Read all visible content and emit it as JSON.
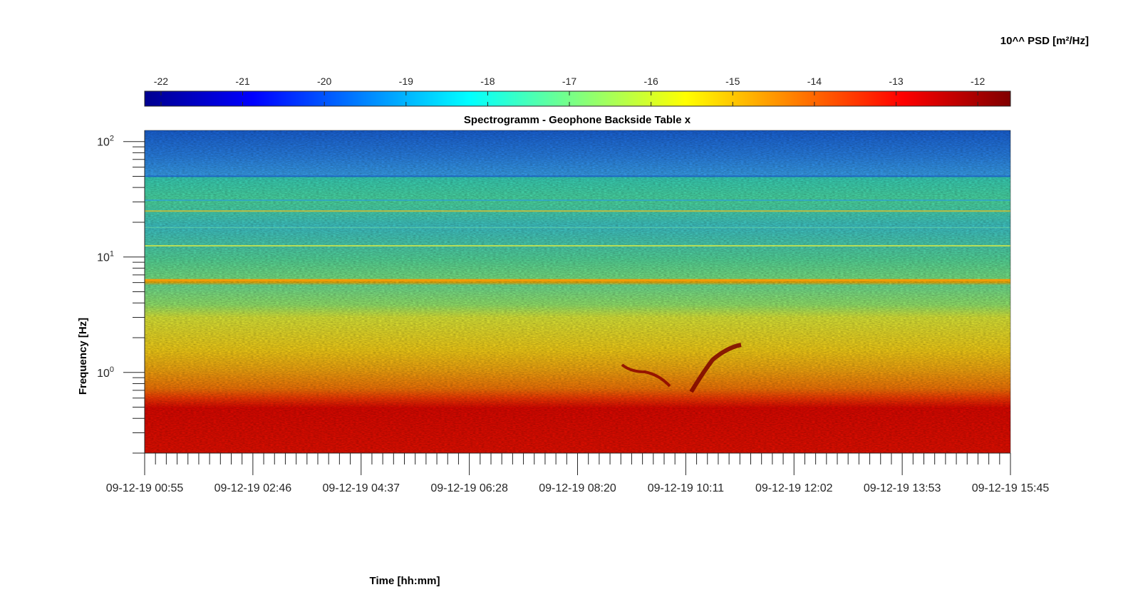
{
  "chart_data": {
    "type": "heatmap",
    "title": "Spectrogramm - Geophone Backside Table x",
    "xlabel": "Time [hh:mm]",
    "ylabel": "Frequency [Hz]",
    "colorbar_label": "10^^ PSD [m²/Hz]",
    "x_tick_labels": [
      "09-12-19 00:55",
      "09-12-19 02:46",
      "09-12-19 04:37",
      "09-12-19 06:28",
      "09-12-19 08:20",
      "09-12-19 10:11",
      "09-12-19 12:02",
      "09-12-19 13:53",
      "09-12-19 15:45"
    ],
    "y_scale": "log",
    "y_tick_labels": [
      {
        "value": 1,
        "base": "10",
        "exp": "0"
      },
      {
        "value": 10,
        "base": "10",
        "exp": "1"
      },
      {
        "value": 100,
        "base": "10",
        "exp": "2"
      }
    ],
    "ylim": [
      0.2,
      125
    ],
    "colorbar_ticks": [
      -22,
      -21,
      -20,
      -19,
      -18,
      -17,
      -16,
      -15,
      -14,
      -13,
      -12
    ],
    "clim": [
      -22.2,
      -11.6
    ],
    "colormap": "jet",
    "band_levels": [
      {
        "f_from": 0.2,
        "f_to": 0.62,
        "log_psd": -12.8
      },
      {
        "f_from": 0.62,
        "f_to": 1.2,
        "log_psd": -14.4
      },
      {
        "f_from": 1.2,
        "f_to": 3.3,
        "log_psd": -15.4
      },
      {
        "f_from": 3.3,
        "f_to": 6.0,
        "log_psd": -17.2
      },
      {
        "f_from": 6.0,
        "f_to": 6.6,
        "log_psd": -14.8
      },
      {
        "f_from": 6.6,
        "f_to": 24,
        "log_psd": -17.4
      },
      {
        "f_from": 24,
        "f_to": 50,
        "log_psd": -17.8
      },
      {
        "f_from": 50,
        "f_to": 125,
        "log_psd": -19.8
      }
    ]
  }
}
